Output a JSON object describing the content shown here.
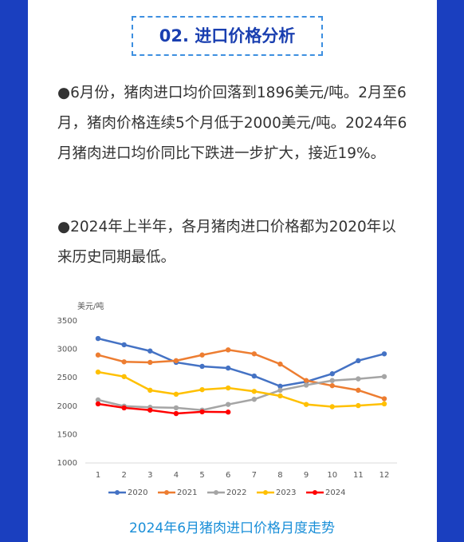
{
  "header": {
    "title": "02. 进口价格分析"
  },
  "paragraphs": [
    "●6月份，猪肉进口均价回落到1896美元/吨。2月至6月，猪肉价格连续5个月低于2000美元/吨。2024年6月猪肉进口均价同比下跌进一步扩大，接近19%。",
    "●2024年上半年，各月猪肉进口价格都为2020年以来历史同期最低。"
  ],
  "chart_data": {
    "type": "line",
    "y_label": "美元/吨",
    "x": [
      1,
      2,
      3,
      4,
      5,
      6,
      7,
      8,
      9,
      10,
      11,
      12
    ],
    "xlim": [
      1,
      12
    ],
    "xticks": [
      1,
      2,
      3,
      4,
      5,
      6,
      7,
      8,
      9,
      10,
      11,
      12
    ],
    "ylim": [
      1000,
      3500
    ],
    "yticks": [
      1000,
      1500,
      2000,
      2500,
      3000,
      3500
    ],
    "grid": false,
    "legend": "bottom",
    "series": [
      {
        "name": "2020",
        "color": "#4472c4",
        "values": [
          3190,
          3080,
          2970,
          2770,
          2700,
          2670,
          2530,
          2350,
          2430,
          2570,
          2800,
          2920
        ]
      },
      {
        "name": "2021",
        "color": "#ed7d31",
        "values": [
          2900,
          2780,
          2770,
          2800,
          2900,
          2990,
          2920,
          2740,
          2450,
          2360,
          2280,
          2130
        ]
      },
      {
        "name": "2022",
        "color": "#a5a5a5",
        "values": [
          2110,
          2000,
          1980,
          1970,
          1930,
          2030,
          2120,
          2280,
          2370,
          2450,
          2480,
          2520
        ]
      },
      {
        "name": "2023",
        "color": "#ffc000",
        "values": [
          2600,
          2520,
          2280,
          2210,
          2290,
          2320,
          2260,
          2180,
          2030,
          1990,
          2010,
          2040
        ]
      },
      {
        "name": "2024",
        "color": "#ff0000",
        "values": [
          2040,
          1970,
          1930,
          1870,
          1900,
          1896,
          null,
          null,
          null,
          null,
          null,
          null
        ]
      }
    ],
    "caption": "2024年6月猪肉进口价格月度走势"
  }
}
